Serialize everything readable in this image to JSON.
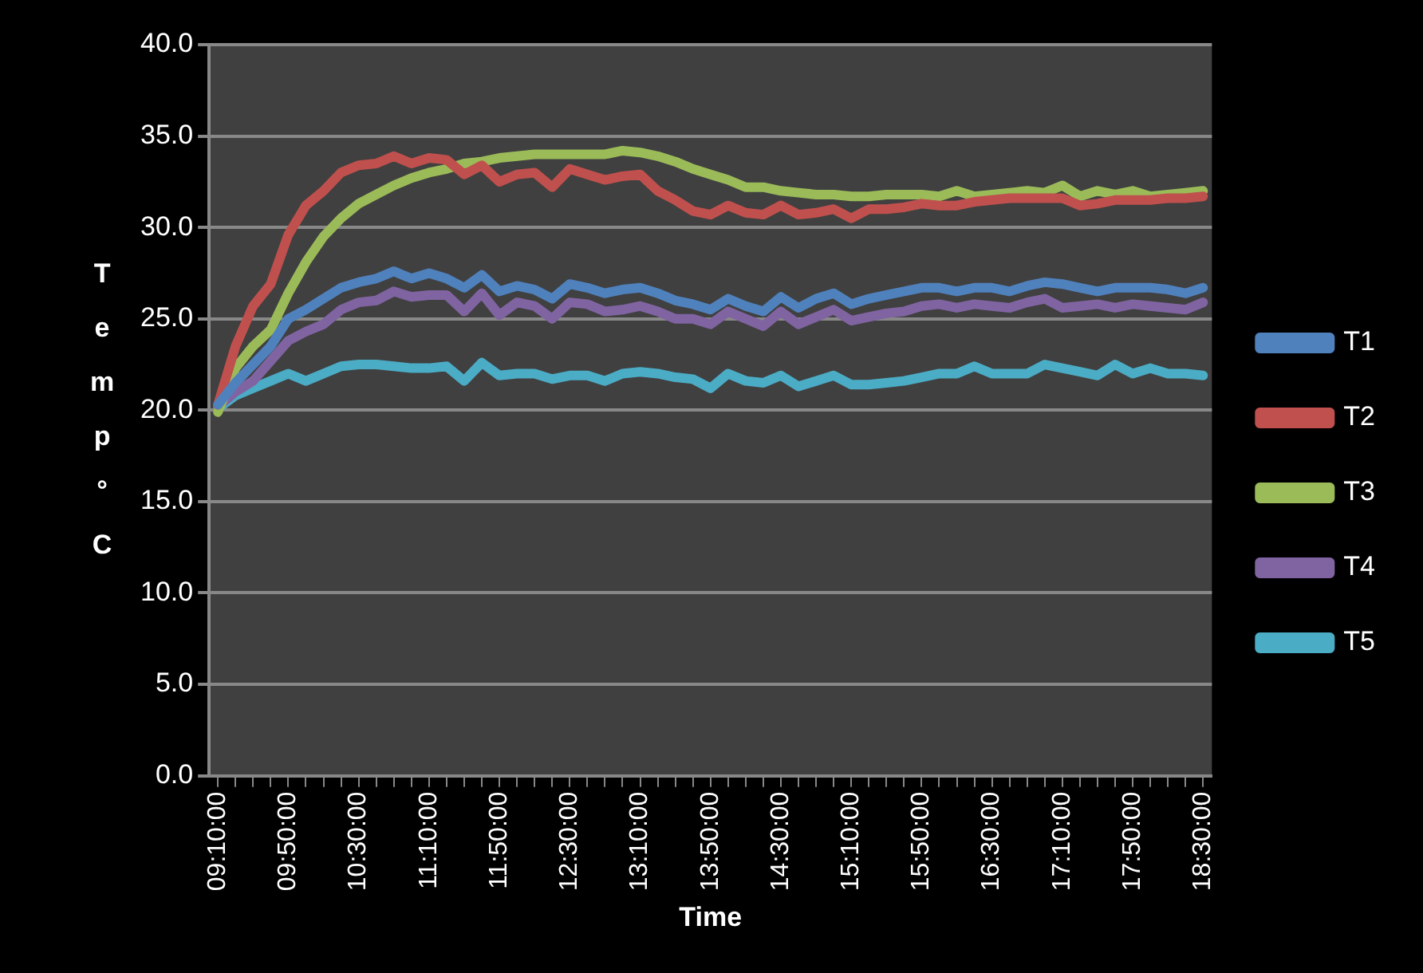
{
  "chart_data": {
    "type": "line",
    "xlabel": "Time",
    "ylabel": "Temp °C",
    "categories": [
      "09:10:00",
      null,
      null,
      null,
      "09:50:00",
      null,
      null,
      null,
      "10:30:00",
      null,
      null,
      null,
      "11:10:00",
      null,
      null,
      null,
      "11:50:00",
      null,
      null,
      null,
      "12:30:00",
      null,
      null,
      null,
      "13:10:00",
      null,
      null,
      null,
      "13:50:00",
      null,
      null,
      null,
      "14:30:00",
      null,
      null,
      null,
      "15:10:00",
      null,
      null,
      null,
      "15:50:00",
      null,
      null,
      null,
      "16:30:00",
      null,
      null,
      null,
      "17:10:00",
      null,
      null,
      null,
      "17:50:00",
      null,
      null,
      null,
      "18:30:00"
    ],
    "ylim": [
      0,
      40
    ],
    "yticks": [
      {
        "value": 0,
        "label": "0.0"
      },
      {
        "value": 5,
        "label": "5.0"
      },
      {
        "value": 10,
        "label": "10.0"
      },
      {
        "value": 15,
        "label": "15.0"
      },
      {
        "value": 20,
        "label": "20.0"
      },
      {
        "value": 25,
        "label": "25.0"
      },
      {
        "value": 30,
        "label": "30.0"
      },
      {
        "value": 35,
        "label": "35.0"
      },
      {
        "value": 40,
        "label": "40.0"
      }
    ],
    "grid": "y",
    "legend": "right",
    "marker": "none",
    "line_style": "solid",
    "series": [
      {
        "name": "T1",
        "color": "#4f81bd",
        "values": [
          20.3,
          21.5,
          22.5,
          23.5,
          25.0,
          25.5,
          26.1,
          26.7,
          27.0,
          27.2,
          27.6,
          27.2,
          27.5,
          27.2,
          26.7,
          27.4,
          26.5,
          26.8,
          26.6,
          26.1,
          26.9,
          26.7,
          26.4,
          26.6,
          26.7,
          26.4,
          26.0,
          25.8,
          25.5,
          26.1,
          25.7,
          25.4,
          26.2,
          25.6,
          26.1,
          26.4,
          25.8,
          26.1,
          26.3,
          26.5,
          26.7,
          26.7,
          26.5,
          26.7,
          26.7,
          26.5,
          26.8,
          27.0,
          26.9,
          26.7,
          26.5,
          26.7,
          26.7,
          26.7,
          26.6,
          26.4,
          26.7
        ]
      },
      {
        "name": "T2",
        "color": "#c0504d",
        "values": [
          20.3,
          23.5,
          25.7,
          26.9,
          29.6,
          31.2,
          32.0,
          33.0,
          33.4,
          33.5,
          33.9,
          33.5,
          33.8,
          33.7,
          32.9,
          33.4,
          32.5,
          32.9,
          33.0,
          32.2,
          33.2,
          32.9,
          32.6,
          32.8,
          32.9,
          32.0,
          31.5,
          30.9,
          30.7,
          31.2,
          30.8,
          30.7,
          31.2,
          30.7,
          30.8,
          31.0,
          30.5,
          31.0,
          31.0,
          31.1,
          31.3,
          31.2,
          31.2,
          31.4,
          31.5,
          31.6,
          31.6,
          31.6,
          31.6,
          31.2,
          31.3,
          31.5,
          31.5,
          31.5,
          31.6,
          31.6,
          31.7
        ]
      },
      {
        "name": "T3",
        "color": "#9bbb59",
        "values": [
          19.9,
          22.3,
          23.5,
          24.4,
          26.4,
          28.1,
          29.5,
          30.5,
          31.3,
          31.8,
          32.3,
          32.7,
          33.0,
          33.2,
          33.5,
          33.6,
          33.8,
          33.9,
          34.0,
          34.0,
          34.0,
          34.0,
          34.0,
          34.2,
          34.1,
          33.9,
          33.6,
          33.2,
          32.9,
          32.6,
          32.2,
          32.2,
          32.0,
          31.9,
          31.8,
          31.8,
          31.7,
          31.7,
          31.8,
          31.8,
          31.8,
          31.7,
          32.0,
          31.7,
          31.8,
          31.9,
          32.0,
          31.9,
          32.3,
          31.7,
          32.0,
          31.8,
          32.0,
          31.7,
          31.8,
          31.9,
          32.0
        ]
      },
      {
        "name": "T4",
        "color": "#8064a2",
        "values": [
          20.2,
          21.0,
          21.6,
          22.7,
          23.8,
          24.3,
          24.7,
          25.5,
          25.9,
          26.0,
          26.5,
          26.2,
          26.3,
          26.3,
          25.4,
          26.4,
          25.2,
          25.9,
          25.7,
          25.0,
          25.9,
          25.8,
          25.4,
          25.5,
          25.7,
          25.4,
          25.0,
          25.0,
          24.7,
          25.4,
          25.0,
          24.6,
          25.4,
          24.7,
          25.1,
          25.5,
          24.9,
          25.1,
          25.3,
          25.4,
          25.7,
          25.8,
          25.6,
          25.8,
          25.7,
          25.6,
          25.9,
          26.1,
          25.6,
          25.7,
          25.8,
          25.6,
          25.8,
          25.7,
          25.6,
          25.5,
          25.9
        ]
      },
      {
        "name": "T5",
        "color": "#4bacc6",
        "values": [
          20.1,
          20.8,
          21.2,
          21.6,
          22.0,
          21.6,
          22.0,
          22.4,
          22.5,
          22.5,
          22.4,
          22.3,
          22.3,
          22.4,
          21.6,
          22.6,
          21.9,
          22.0,
          22.0,
          21.7,
          21.9,
          21.9,
          21.6,
          22.0,
          22.1,
          22.0,
          21.8,
          21.7,
          21.2,
          22.0,
          21.6,
          21.5,
          21.9,
          21.3,
          21.6,
          21.9,
          21.4,
          21.4,
          21.5,
          21.6,
          21.8,
          22.0,
          22.0,
          22.4,
          22.0,
          22.0,
          22.0,
          22.5,
          22.3,
          22.1,
          21.9,
          22.5,
          22.0,
          22.3,
          22.0,
          22.0,
          21.9
        ]
      }
    ]
  }
}
